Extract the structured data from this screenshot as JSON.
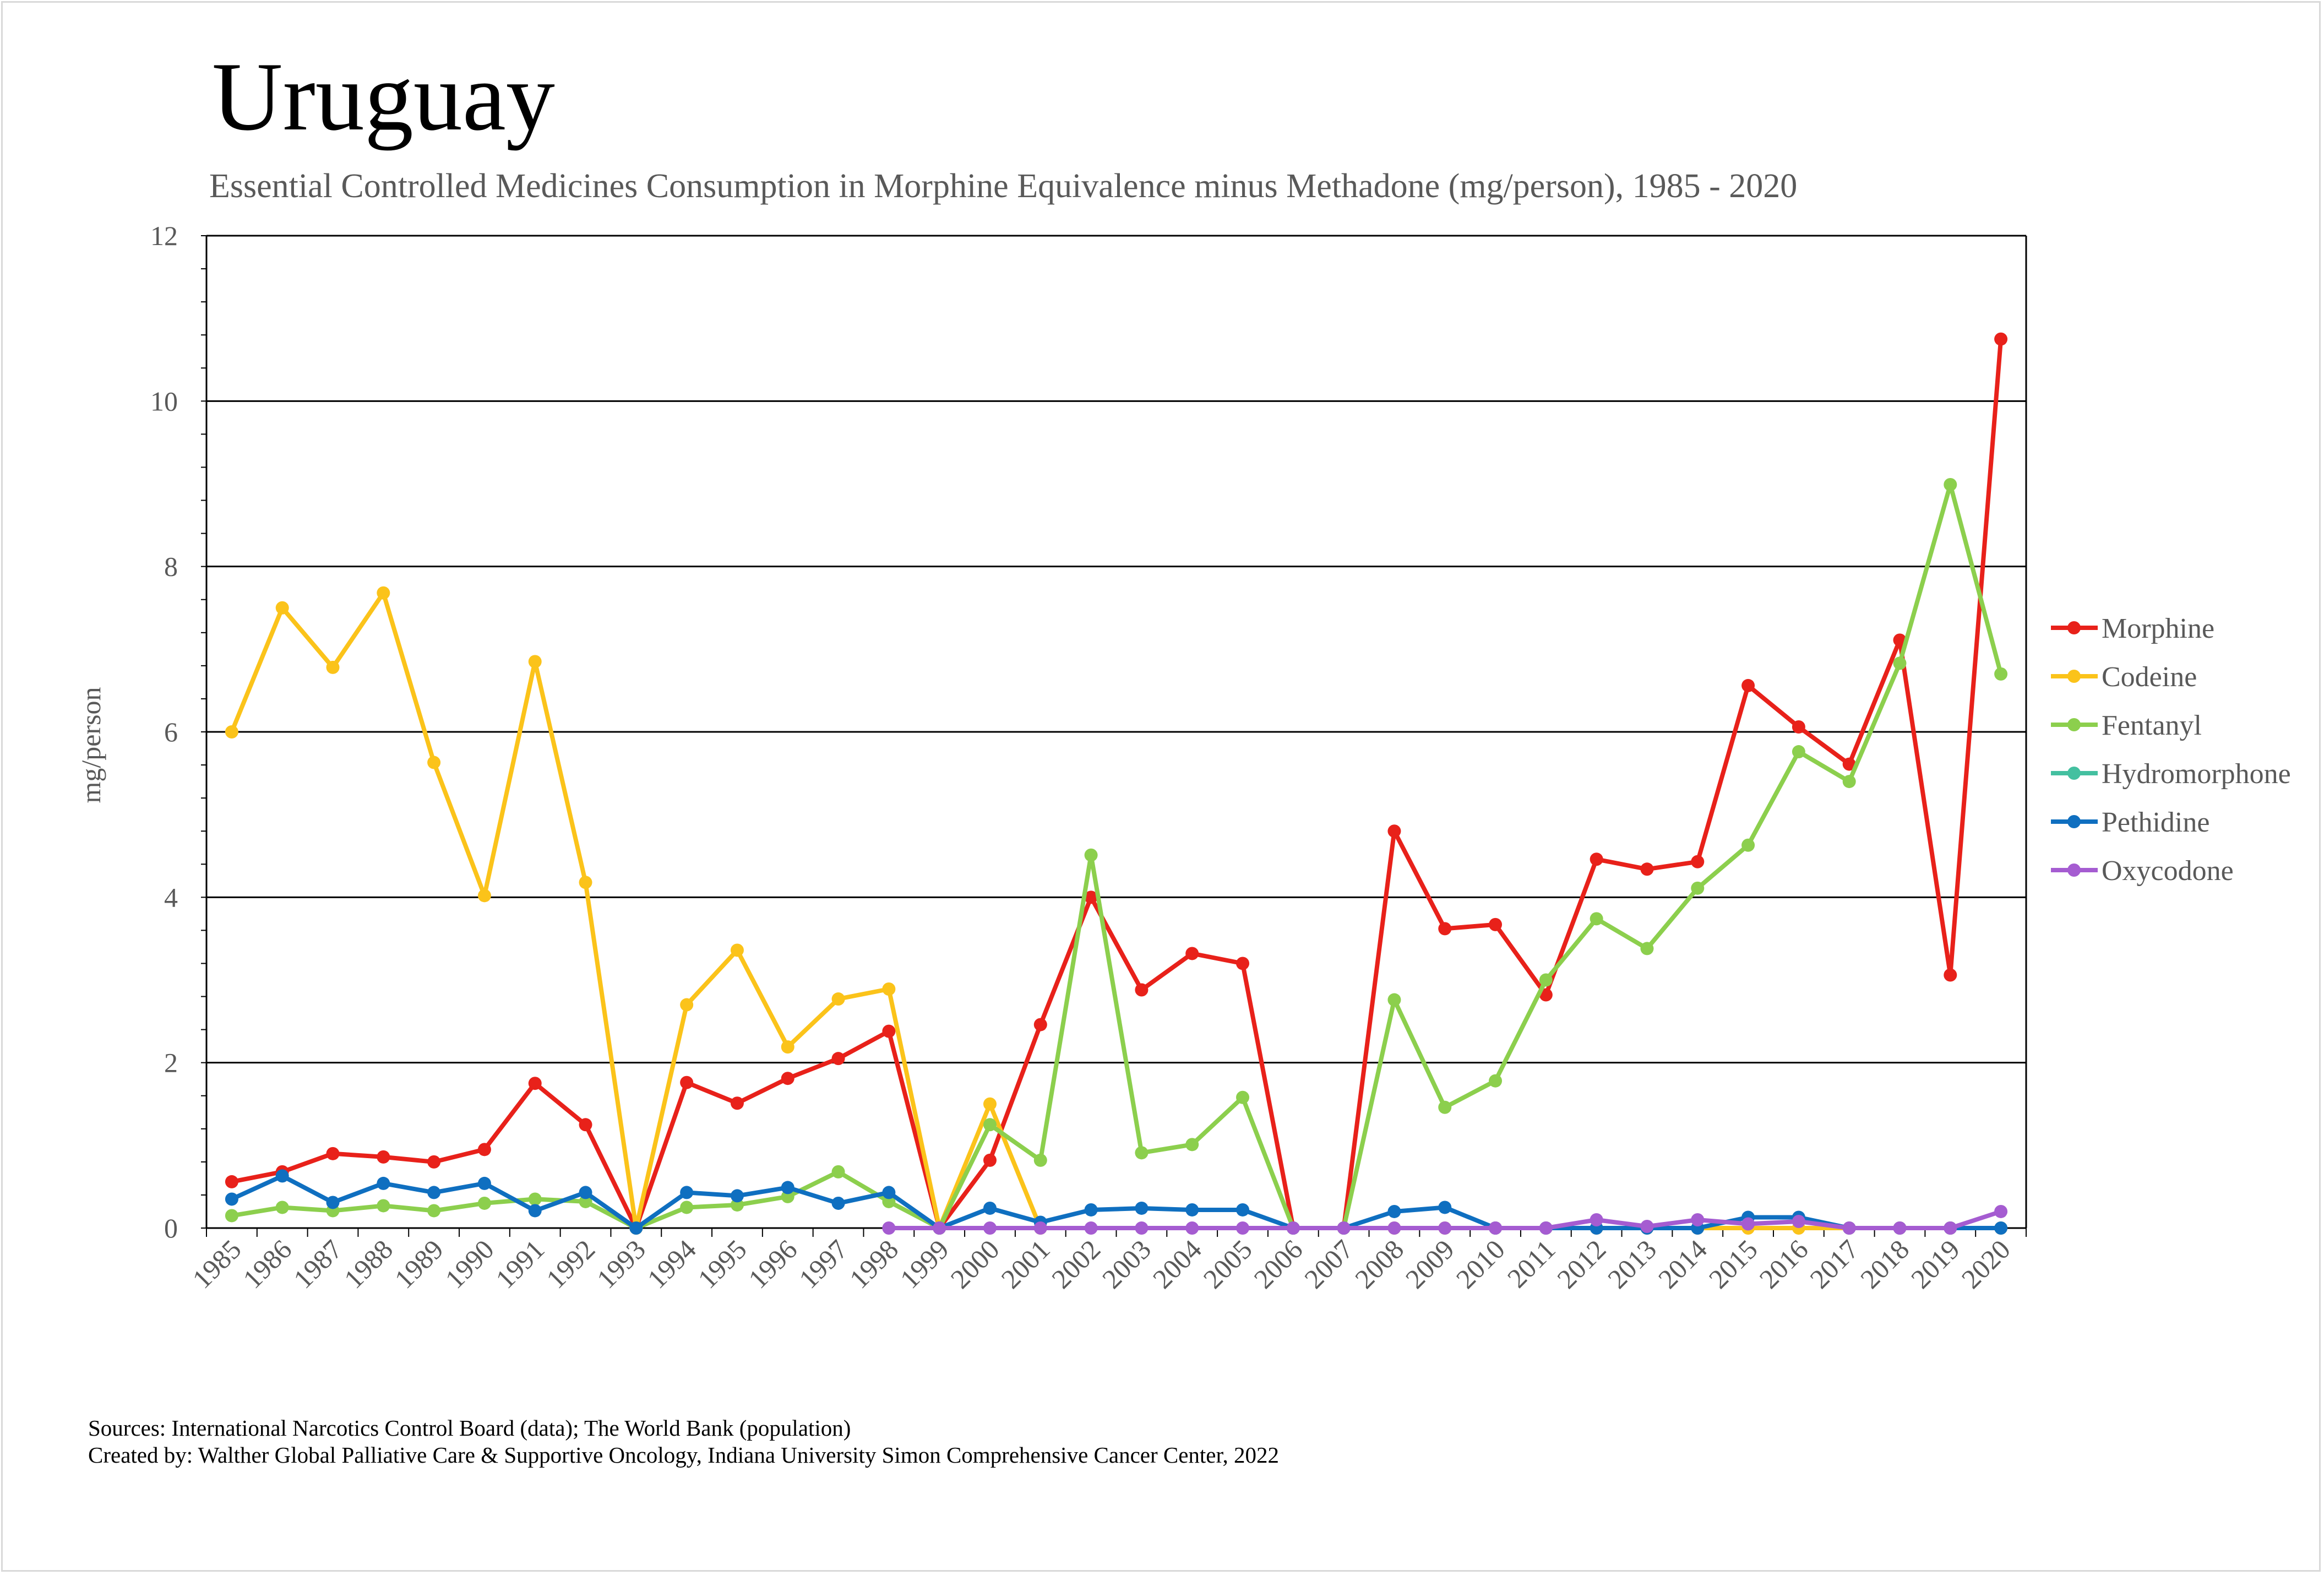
{
  "title": "Uruguay",
  "subtitle": "Essential Controlled Medicines Consumption in Morphine Equivalence minus Methadone (mg/person), 1985 - 2020",
  "sources": {
    "line1": "Sources: International Narcotics Control Board (data); The World Bank (population)",
    "line2": "Created by: Walther Global Palliative Care & Supportive Oncology, Indiana University Simon Comprehensive Cancer Center, 2022"
  },
  "chart_data": {
    "type": "line",
    "title": "Uruguay",
    "xlabel": "",
    "ylabel": "mg/person",
    "ylim": [
      0,
      12
    ],
    "yticks": [
      "0",
      "2",
      "4",
      "6",
      "8",
      "10",
      "12"
    ],
    "grid": true,
    "legend_position": "right",
    "categories": [
      "1985",
      "1986",
      "1987",
      "1988",
      "1989",
      "1990",
      "1991",
      "1992",
      "1993",
      "1994",
      "1995",
      "1996",
      "1997",
      "1998",
      "1999",
      "2000",
      "2001",
      "2002",
      "2003",
      "2004",
      "2005",
      "2006",
      "2007",
      "2008",
      "2009",
      "2010",
      "2011",
      "2012",
      "2013",
      "2014",
      "2015",
      "2016",
      "2017",
      "2018",
      "2019",
      "2020"
    ],
    "series": [
      {
        "name": "Morphine",
        "color": "#e8211a",
        "values": [
          0.56,
          0.68,
          0.9,
          0.86,
          0.8,
          0.95,
          1.75,
          1.25,
          0.0,
          1.76,
          1.51,
          1.81,
          2.05,
          2.38,
          0.0,
          0.82,
          2.46,
          4.0,
          2.88,
          3.32,
          3.2,
          0.0,
          0.0,
          4.8,
          3.62,
          3.67,
          2.82,
          4.46,
          4.34,
          4.43,
          6.56,
          6.06,
          5.61,
          7.11,
          3.06,
          10.75
        ]
      },
      {
        "name": "Codeine",
        "color": "#fbc31a",
        "values": [
          6.0,
          7.5,
          6.78,
          7.68,
          5.63,
          4.02,
          6.85,
          4.18,
          0.0,
          2.7,
          3.36,
          2.19,
          2.77,
          2.89,
          0.0,
          1.5,
          0.0,
          null,
          null,
          null,
          null,
          null,
          0.0,
          0.0,
          0.0,
          0.0,
          0.0,
          0.0,
          0.0,
          0.0,
          0.0,
          0.0,
          0.0,
          0.0,
          0.0,
          0.0
        ]
      },
      {
        "name": "Fentanyl",
        "color": "#8ccf4d",
        "values": [
          0.15,
          0.25,
          0.21,
          0.27,
          0.21,
          0.3,
          0.35,
          0.32,
          0.0,
          0.25,
          0.28,
          0.38,
          0.68,
          0.32,
          0.0,
          1.25,
          0.82,
          4.51,
          0.91,
          1.01,
          1.58,
          0.0,
          0.0,
          2.76,
          1.46,
          1.78,
          3.0,
          3.74,
          3.38,
          4.11,
          4.63,
          5.76,
          5.4,
          6.83,
          8.99,
          6.7
        ]
      },
      {
        "name": "Hydromorphone",
        "color": "#44c0a0",
        "values": [
          null,
          null,
          null,
          null,
          null,
          null,
          null,
          null,
          null,
          null,
          null,
          null,
          null,
          null,
          null,
          null,
          null,
          null,
          null,
          null,
          null,
          null,
          null,
          null,
          null,
          null,
          null,
          null,
          null,
          null,
          null,
          null,
          null,
          null,
          null,
          null
        ]
      },
      {
        "name": "Pethidine",
        "color": "#0f6fc0",
        "values": [
          0.35,
          0.63,
          0.31,
          0.54,
          0.43,
          0.54,
          0.21,
          0.43,
          0.0,
          0.43,
          0.39,
          0.49,
          0.3,
          0.43,
          0.0,
          0.24,
          0.07,
          0.22,
          0.24,
          0.22,
          0.22,
          0.0,
          0.0,
          0.2,
          0.25,
          0.0,
          0.0,
          0.0,
          0.0,
          0.0,
          0.13,
          0.13,
          0.0,
          0.0,
          0.0,
          0.0
        ]
      },
      {
        "name": "Oxycodone",
        "color": "#a55cd1",
        "values": [
          null,
          null,
          null,
          null,
          null,
          null,
          null,
          null,
          null,
          null,
          null,
          null,
          null,
          0.0,
          0.0,
          0.0,
          0.0,
          0.0,
          0.0,
          0.0,
          0.0,
          0.0,
          0.0,
          0.0,
          0.0,
          0.0,
          0.0,
          0.1,
          0.02,
          0.1,
          0.05,
          0.08,
          0.0,
          0.0,
          0.0,
          0.2
        ]
      }
    ]
  }
}
